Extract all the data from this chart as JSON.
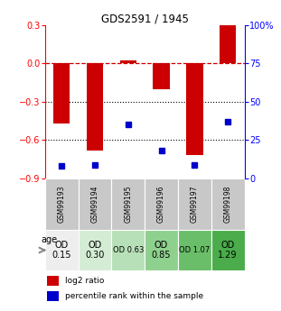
{
  "title": "GDS2591 / 1945",
  "samples": [
    "GSM99193",
    "GSM99194",
    "GSM99195",
    "GSM99196",
    "GSM99197",
    "GSM99198"
  ],
  "log2_ratio": [
    -0.47,
    -0.68,
    0.02,
    -0.2,
    -0.72,
    0.3
  ],
  "percentile_rank": [
    8,
    9,
    35,
    18,
    9,
    37
  ],
  "od_labels": [
    "OD\n0.15",
    "OD\n0.30",
    "OD 0.63",
    "OD\n0.85",
    "OD 1.07",
    "OD\n1.29"
  ],
  "od_colors": [
    "#eeeeee",
    "#d4ecd4",
    "#b8e0b8",
    "#8ed08e",
    "#6abe6a",
    "#4aac4a"
  ],
  "od_fontsize": [
    7,
    7,
    6,
    7,
    6,
    7
  ],
  "ylim_left": [
    -0.9,
    0.3
  ],
  "ylim_right": [
    0,
    100
  ],
  "yticks_left": [
    -0.9,
    -0.6,
    -0.3,
    0.0,
    0.3
  ],
  "yticks_right": [
    0,
    25,
    50,
    75,
    100
  ],
  "bar_color": "#cc0000",
  "dot_color": "#0000cc",
  "bg_color": "#ffffff",
  "grid_color": "#000000",
  "dashed_color": "#cc0000",
  "legend_red_label": "log2 ratio",
  "legend_blue_label": "percentile rank within the sample",
  "age_label": "age",
  "sample_bg": "#c8c8c8"
}
